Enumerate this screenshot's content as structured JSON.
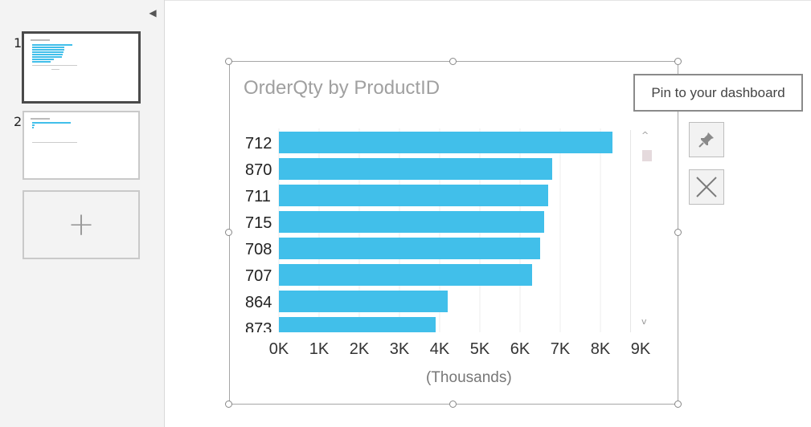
{
  "sidebar": {
    "collapse_icon": "chevron-left-icon",
    "slides": [
      {
        "number": "1",
        "active": true
      },
      {
        "number": "2",
        "active": false
      }
    ],
    "add_slide_label": "+"
  },
  "visual": {
    "tooltip": "Pin to your dashboard",
    "pin_icon": "pin-icon",
    "close_icon": "close-x-icon",
    "scroll_up": "^",
    "scroll_down": "v"
  },
  "chart_data": {
    "type": "bar",
    "orientation": "horizontal",
    "title": "OrderQty by ProductID",
    "xlabel": "(Thousands)",
    "ylabel": "",
    "categories": [
      "712",
      "870",
      "711",
      "715",
      "708",
      "707",
      "864",
      "873"
    ],
    "values": [
      8.3,
      6.8,
      6.7,
      6.6,
      6.5,
      6.3,
      4.2,
      3.9
    ],
    "xlim": [
      0,
      9
    ],
    "xticks": [
      "0K",
      "1K",
      "2K",
      "3K",
      "4K",
      "5K",
      "6K",
      "7K",
      "8K",
      "9K"
    ],
    "color": "#41bfea",
    "grid": true
  }
}
